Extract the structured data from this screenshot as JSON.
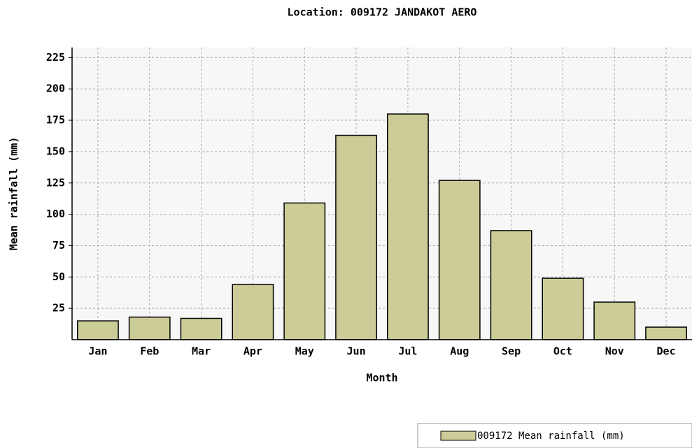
{
  "chart_data": {
    "type": "bar",
    "title": "Location: 009172 JANDAKOT AERO",
    "x_label": "Month",
    "y_label": "Mean rainfall (mm)",
    "categories": [
      "Jan",
      "Feb",
      "Mar",
      "Apr",
      "May",
      "Jun",
      "Jul",
      "Aug",
      "Sep",
      "Oct",
      "Nov",
      "Dec"
    ],
    "series": [
      {
        "name": "009172 Mean rainfall (mm)",
        "color": "#cccc99",
        "values": [
          15,
          18,
          17,
          44,
          109,
          163,
          180,
          127,
          87,
          49,
          30,
          10
        ]
      }
    ],
    "ylim": [
      0,
      233
    ],
    "yticks": [
      25,
      50,
      75,
      100,
      125,
      150,
      175,
      200,
      225
    ],
    "grid": true
  }
}
